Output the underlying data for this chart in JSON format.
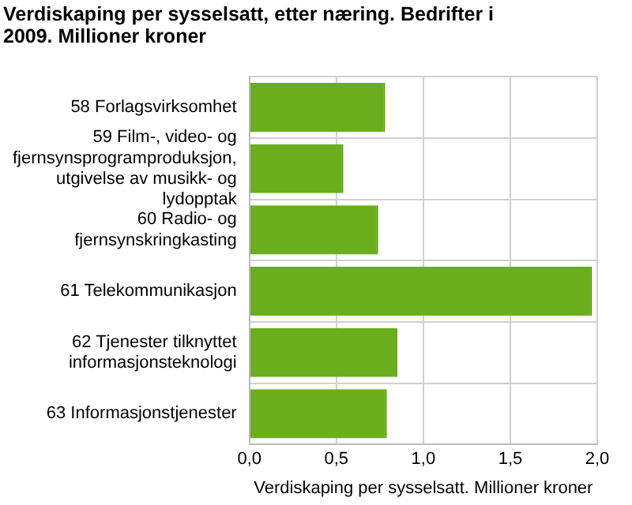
{
  "chart_data": {
    "type": "bar",
    "orientation": "horizontal",
    "title": "Verdiskaping per sysselsatt, etter næring. Bedrifter i 2009. Millioner kroner",
    "xlabel": "Verdiskaping per sysselsatt. Millioner kroner",
    "categories": [
      "58 Forlagsvirksomhet",
      "59 Film-, video- og fjernsynsprogramproduksjon, utgivelse av musikk- og lydopptak",
      "60 Radio- og fjernsynskringkasting",
      "61 Telekommunikasjon",
      "62 Tjenester tilknyttet informasjonsteknologi",
      "63 Informasjonstjenester"
    ],
    "values": [
      0.78,
      0.54,
      0.74,
      1.97,
      0.85,
      0.79
    ],
    "color": "#6aae1e",
    "xlim": [
      0,
      2
    ],
    "xticks": [
      {
        "value": 0,
        "label": "0,0"
      },
      {
        "value": 0.5,
        "label": "0,5"
      },
      {
        "value": 1,
        "label": "1,0"
      },
      {
        "value": 1.5,
        "label": "1,5"
      },
      {
        "value": 2,
        "label": "2,0"
      }
    ],
    "grid": true,
    "legend": false
  }
}
